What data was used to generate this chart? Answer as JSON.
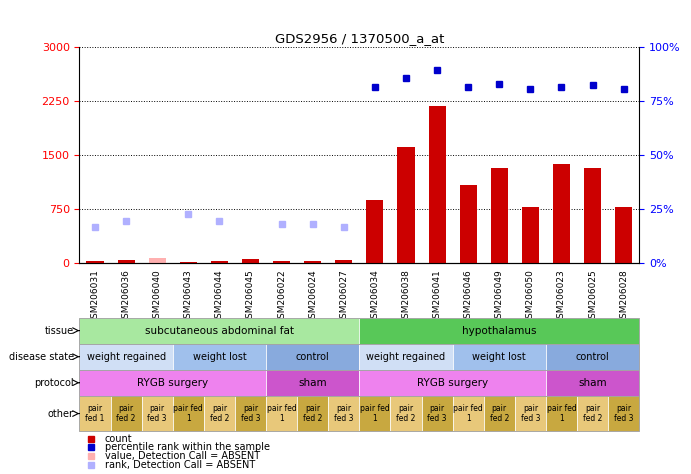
{
  "title": "GDS2956 / 1370500_a_at",
  "samples": [
    "GSM206031",
    "GSM206036",
    "GSM206040",
    "GSM206043",
    "GSM206044",
    "GSM206045",
    "GSM206022",
    "GSM206024",
    "GSM206027",
    "GSM206034",
    "GSM206038",
    "GSM206041",
    "GSM206046",
    "GSM206049",
    "GSM206050",
    "GSM206023",
    "GSM206025",
    "GSM206028"
  ],
  "count_values": [
    28,
    38,
    0,
    18,
    28,
    55,
    22,
    32,
    48,
    880,
    1620,
    2180,
    1080,
    1320,
    780,
    1380,
    1320,
    780
  ],
  "value_absent_indices": [
    2
  ],
  "value_absent_bar_value": 70,
  "percentile_values": [
    500,
    580,
    null,
    680,
    590,
    null,
    545,
    548,
    508,
    2450,
    2580,
    2680,
    2450,
    2490,
    2420,
    2448,
    2475,
    2415
  ],
  "percentile_absent_indices": [
    0,
    1,
    3,
    4,
    6,
    7,
    8
  ],
  "ylim_left": [
    0,
    3000
  ],
  "ylim_right": [
    0,
    100
  ],
  "yticks_left": [
    0,
    750,
    1500,
    2250,
    3000
  ],
  "yticks_right": [
    0,
    25,
    50,
    75,
    100
  ],
  "tissue_groups": [
    {
      "label": "subcutaneous abdominal fat",
      "start": 0,
      "end": 9,
      "color": "#a8e8a0"
    },
    {
      "label": "hypothalamus",
      "start": 9,
      "end": 18,
      "color": "#58c858"
    }
  ],
  "disease_groups": [
    {
      "label": "weight regained",
      "start": 0,
      "end": 3,
      "color": "#d0dff5"
    },
    {
      "label": "weight lost",
      "start": 3,
      "end": 6,
      "color": "#a0c0ec"
    },
    {
      "label": "control",
      "start": 6,
      "end": 9,
      "color": "#88aadd"
    },
    {
      "label": "weight regained",
      "start": 9,
      "end": 12,
      "color": "#d0dff5"
    },
    {
      "label": "weight lost",
      "start": 12,
      "end": 15,
      "color": "#a0c0ec"
    },
    {
      "label": "control",
      "start": 15,
      "end": 18,
      "color": "#88aadd"
    }
  ],
  "protocol_groups": [
    {
      "label": "RYGB surgery",
      "start": 0,
      "end": 6,
      "color": "#ee82ee"
    },
    {
      "label": "sham",
      "start": 6,
      "end": 9,
      "color": "#cc55cc"
    },
    {
      "label": "RYGB surgery",
      "start": 9,
      "end": 15,
      "color": "#ee82ee"
    },
    {
      "label": "sham",
      "start": 15,
      "end": 18,
      "color": "#cc55cc"
    }
  ],
  "other_groups": [
    {
      "label": "pair\nfed 1",
      "start": 0,
      "end": 1,
      "color": "#e8c87a"
    },
    {
      "label": "pair\nfed 2",
      "start": 1,
      "end": 2,
      "color": "#c8a840"
    },
    {
      "label": "pair\nfed 3",
      "start": 2,
      "end": 3,
      "color": "#e8c87a"
    },
    {
      "label": "pair fed\n1",
      "start": 3,
      "end": 4,
      "color": "#c8a840"
    },
    {
      "label": "pair\nfed 2",
      "start": 4,
      "end": 5,
      "color": "#e8c87a"
    },
    {
      "label": "pair\nfed 3",
      "start": 5,
      "end": 6,
      "color": "#c8a840"
    },
    {
      "label": "pair fed\n1",
      "start": 6,
      "end": 7,
      "color": "#e8c87a"
    },
    {
      "label": "pair\nfed 2",
      "start": 7,
      "end": 8,
      "color": "#c8a840"
    },
    {
      "label": "pair\nfed 3",
      "start": 8,
      "end": 9,
      "color": "#e8c87a"
    },
    {
      "label": "pair fed\n1",
      "start": 9,
      "end": 10,
      "color": "#c8a840"
    },
    {
      "label": "pair\nfed 2",
      "start": 10,
      "end": 11,
      "color": "#e8c87a"
    },
    {
      "label": "pair\nfed 3",
      "start": 11,
      "end": 12,
      "color": "#c8a840"
    },
    {
      "label": "pair fed\n1",
      "start": 12,
      "end": 13,
      "color": "#e8c87a"
    },
    {
      "label": "pair\nfed 2",
      "start": 13,
      "end": 14,
      "color": "#c8a840"
    },
    {
      "label": "pair\nfed 3",
      "start": 14,
      "end": 15,
      "color": "#e8c87a"
    },
    {
      "label": "pair fed\n1",
      "start": 15,
      "end": 16,
      "color": "#c8a840"
    },
    {
      "label": "pair\nfed 2",
      "start": 16,
      "end": 17,
      "color": "#e8c87a"
    },
    {
      "label": "pair\nfed 3",
      "start": 17,
      "end": 18,
      "color": "#c8a840"
    }
  ],
  "bar_color": "#cc0000",
  "dot_color": "#0000cc",
  "absent_bar_color": "#ffb0b0",
  "absent_dot_color": "#b0b0ff",
  "legend_items": [
    {
      "label": "count",
      "color": "#cc0000"
    },
    {
      "label": "percentile rank within the sample",
      "color": "#0000cc"
    },
    {
      "label": "value, Detection Call = ABSENT",
      "color": "#ffb0b0"
    },
    {
      "label": "rank, Detection Call = ABSENT",
      "color": "#b0b0ff"
    }
  ],
  "row_labels": [
    "tissue",
    "disease state",
    "protocol",
    "other"
  ]
}
